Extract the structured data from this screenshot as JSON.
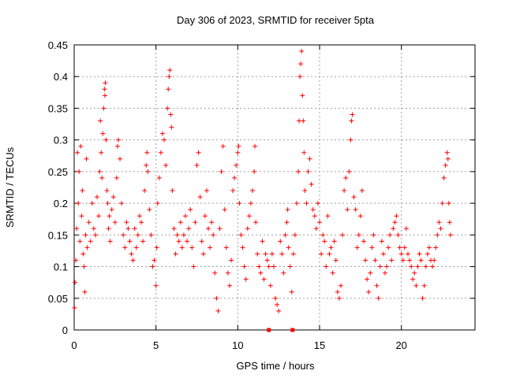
{
  "chart_data": {
    "type": "scatter",
    "title": "Day 306 of 2023, SRMTID for receiver 5pta",
    "xlabel": "GPS time / hours",
    "ylabel": "SRMTID / TECUs",
    "xlim": [
      0,
      24.5
    ],
    "ylim": [
      0,
      0.45
    ],
    "xticks": [
      0,
      5,
      10,
      15,
      20
    ],
    "xtick_labels": [
      "0",
      "5",
      "10",
      "15",
      "20"
    ],
    "yticks": [
      0,
      0.05,
      0.1,
      0.15,
      0.2,
      0.25,
      0.3,
      0.35,
      0.4,
      0.45
    ],
    "ytick_labels": [
      "0",
      "0.05",
      "0.1",
      "0.15",
      "0.2",
      "0.25",
      "0.3",
      "0.35",
      "0.4",
      "0.45"
    ],
    "grid": true,
    "marker": "+",
    "color": "#ff0000",
    "series": [
      {
        "name": "SRMTID",
        "points": [
          [
            0.02,
            0.035
          ],
          [
            0.05,
            0.075
          ],
          [
            0.1,
            0.11
          ],
          [
            0.15,
            0.16
          ],
          [
            0.2,
            0.28
          ],
          [
            0.25,
            0.2
          ],
          [
            0.3,
            0.25
          ],
          [
            0.35,
            0.14
          ],
          [
            0.4,
            0.29
          ],
          [
            0.45,
            0.18
          ],
          [
            0.5,
            0.22
          ],
          [
            0.55,
            0.12
          ],
          [
            0.6,
            0.1
          ],
          [
            0.65,
            0.06
          ],
          [
            0.7,
            0.15
          ],
          [
            0.75,
            0.27
          ],
          [
            0.8,
            0.13
          ],
          [
            0.9,
            0.17
          ],
          [
            1.0,
            0.14
          ],
          [
            1.1,
            0.2
          ],
          [
            1.2,
            0.16
          ],
          [
            1.3,
            0.15
          ],
          [
            1.4,
            0.21
          ],
          [
            1.5,
            0.18
          ],
          [
            1.55,
            0.25
          ],
          [
            1.6,
            0.33
          ],
          [
            1.65,
            0.28
          ],
          [
            1.7,
            0.24
          ],
          [
            1.75,
            0.31
          ],
          [
            1.8,
            0.35
          ],
          [
            1.85,
            0.38
          ],
          [
            1.88,
            0.37
          ],
          [
            1.9,
            0.39
          ],
          [
            1.95,
            0.3
          ],
          [
            2.0,
            0.22
          ],
          [
            2.05,
            0.2
          ],
          [
            2.1,
            0.16
          ],
          [
            2.15,
            0.18
          ],
          [
            2.2,
            0.14
          ],
          [
            2.3,
            0.19
          ],
          [
            2.4,
            0.21
          ],
          [
            2.5,
            0.17
          ],
          [
            2.6,
            0.24
          ],
          [
            2.65,
            0.29
          ],
          [
            2.7,
            0.3
          ],
          [
            2.8,
            0.27
          ],
          [
            2.9,
            0.2
          ],
          [
            3.0,
            0.15
          ],
          [
            3.1,
            0.13
          ],
          [
            3.2,
            0.17
          ],
          [
            3.3,
            0.16
          ],
          [
            3.4,
            0.14
          ],
          [
            3.5,
            0.12
          ],
          [
            3.6,
            0.11
          ],
          [
            3.7,
            0.16
          ],
          [
            3.8,
            0.13
          ],
          [
            3.9,
            0.15
          ],
          [
            4.0,
            0.18
          ],
          [
            4.1,
            0.17
          ],
          [
            4.2,
            0.14
          ],
          [
            4.3,
            0.22
          ],
          [
            4.4,
            0.26
          ],
          [
            4.45,
            0.28
          ],
          [
            4.5,
            0.25
          ],
          [
            4.6,
            0.19
          ],
          [
            4.7,
            0.15
          ],
          [
            4.8,
            0.1
          ],
          [
            4.9,
            0.11
          ],
          [
            5.0,
            0.07
          ],
          [
            5.05,
            0.13
          ],
          [
            5.1,
            0.2
          ],
          [
            5.2,
            0.24
          ],
          [
            5.3,
            0.28
          ],
          [
            5.4,
            0.31
          ],
          [
            5.5,
            0.3
          ],
          [
            5.6,
            0.26
          ],
          [
            5.7,
            0.35
          ],
          [
            5.75,
            0.38
          ],
          [
            5.8,
            0.4
          ],
          [
            5.85,
            0.41
          ],
          [
            5.9,
            0.34
          ],
          [
            5.95,
            0.32
          ],
          [
            6.0,
            0.22
          ],
          [
            6.1,
            0.16
          ],
          [
            6.2,
            0.12
          ],
          [
            6.3,
            0.15
          ],
          [
            6.4,
            0.14
          ],
          [
            6.5,
            0.17
          ],
          [
            6.6,
            0.13
          ],
          [
            6.7,
            0.15
          ],
          [
            6.8,
            0.18
          ],
          [
            6.9,
            0.14
          ],
          [
            7.0,
            0.16
          ],
          [
            7.1,
            0.19
          ],
          [
            7.2,
            0.13
          ],
          [
            7.3,
            0.1
          ],
          [
            7.4,
            0.17
          ],
          [
            7.5,
            0.26
          ],
          [
            7.6,
            0.28
          ],
          [
            7.7,
            0.21
          ],
          [
            7.8,
            0.14
          ],
          [
            7.9,
            0.12
          ],
          [
            8.0,
            0.18
          ],
          [
            8.1,
            0.22
          ],
          [
            8.2,
            0.16
          ],
          [
            8.3,
            0.13
          ],
          [
            8.4,
            0.17
          ],
          [
            8.5,
            0.15
          ],
          [
            8.6,
            0.09
          ],
          [
            8.7,
            0.05
          ],
          [
            8.8,
            0.03
          ],
          [
            8.9,
            0.16
          ],
          [
            9.0,
            0.25
          ],
          [
            9.1,
            0.29
          ],
          [
            9.2,
            0.19
          ],
          [
            9.3,
            0.13
          ],
          [
            9.4,
            0.09
          ],
          [
            9.5,
            0.07
          ],
          [
            9.6,
            0.11
          ],
          [
            9.7,
            0.22
          ],
          [
            9.8,
            0.24
          ],
          [
            9.9,
            0.26
          ],
          [
            10.0,
            0.28
          ],
          [
            10.05,
            0.29
          ],
          [
            10.1,
            0.2
          ],
          [
            10.2,
            0.15
          ],
          [
            10.3,
            0.13
          ],
          [
            10.4,
            0.1
          ],
          [
            10.5,
            0.08
          ],
          [
            10.6,
            0.16
          ],
          [
            10.7,
            0.18
          ],
          [
            10.8,
            0.2
          ],
          [
            10.9,
            0.22
          ],
          [
            11.0,
            0.25
          ],
          [
            11.05,
            0.29
          ],
          [
            11.1,
            0.17
          ],
          [
            11.2,
            0.12
          ],
          [
            11.3,
            0.1
          ],
          [
            11.4,
            0.09
          ],
          [
            11.5,
            0.14
          ],
          [
            11.6,
            0.08
          ],
          [
            11.7,
            0.12
          ],
          [
            11.8,
            0.11
          ],
          [
            11.9,
            0.1
          ],
          [
            12.0,
            0.07
          ],
          [
            12.1,
            0.12
          ],
          [
            12.2,
            0.1
          ],
          [
            12.3,
            0.05
          ],
          [
            12.4,
            0.04
          ],
          [
            12.5,
            0.03
          ],
          [
            12.6,
            0.14
          ],
          [
            12.7,
            0.12
          ],
          [
            12.8,
            0.09
          ],
          [
            12.9,
            0.15
          ],
          [
            13.0,
            0.17
          ],
          [
            13.05,
            0.19
          ],
          [
            13.1,
            0.13
          ],
          [
            13.2,
            0.1
          ],
          [
            13.3,
            0.06
          ],
          [
            13.4,
            0.12
          ],
          [
            13.5,
            0.15
          ],
          [
            13.6,
            0.2
          ],
          [
            13.7,
            0.25
          ],
          [
            13.75,
            0.33
          ],
          [
            13.8,
            0.4
          ],
          [
            13.85,
            0.42
          ],
          [
            13.9,
            0.44
          ],
          [
            13.95,
            0.37
          ],
          [
            14.0,
            0.33
          ],
          [
            14.05,
            0.28
          ],
          [
            14.1,
            0.22
          ],
          [
            14.2,
            0.2
          ],
          [
            14.3,
            0.25
          ],
          [
            14.4,
            0.27
          ],
          [
            14.5,
            0.23
          ],
          [
            14.6,
            0.19
          ],
          [
            14.7,
            0.18
          ],
          [
            14.8,
            0.16
          ],
          [
            14.9,
            0.2
          ],
          [
            15.0,
            0.17
          ],
          [
            15.1,
            0.12
          ],
          [
            15.2,
            0.15
          ],
          [
            15.3,
            0.14
          ],
          [
            15.4,
            0.1
          ],
          [
            15.5,
            0.18
          ],
          [
            15.6,
            0.12
          ],
          [
            15.7,
            0.13
          ],
          [
            15.8,
            0.09
          ],
          [
            15.9,
            0.14
          ],
          [
            16.0,
            0.11
          ],
          [
            16.1,
            0.06
          ],
          [
            16.2,
            0.05
          ],
          [
            16.3,
            0.07
          ],
          [
            16.4,
            0.15
          ],
          [
            16.5,
            0.22
          ],
          [
            16.6,
            0.24
          ],
          [
            16.7,
            0.19
          ],
          [
            16.8,
            0.25
          ],
          [
            16.9,
            0.3
          ],
          [
            16.95,
            0.33
          ],
          [
            17.0,
            0.34
          ],
          [
            17.1,
            0.21
          ],
          [
            17.2,
            0.19
          ],
          [
            17.3,
            0.13
          ],
          [
            17.4,
            0.15
          ],
          [
            17.5,
            0.18
          ],
          [
            17.6,
            0.22
          ],
          [
            17.7,
            0.14
          ],
          [
            17.8,
            0.11
          ],
          [
            17.9,
            0.08
          ],
          [
            18.0,
            0.06
          ],
          [
            18.1,
            0.09
          ],
          [
            18.2,
            0.13
          ],
          [
            18.3,
            0.15
          ],
          [
            18.4,
            0.11
          ],
          [
            18.5,
            0.07
          ],
          [
            18.6,
            0.05
          ],
          [
            18.7,
            0.1
          ],
          [
            18.8,
            0.14
          ],
          [
            18.9,
            0.12
          ],
          [
            19.0,
            0.09
          ],
          [
            19.1,
            0.1
          ],
          [
            19.2,
            0.13
          ],
          [
            19.3,
            0.15
          ],
          [
            19.4,
            0.11
          ],
          [
            19.5,
            0.16
          ],
          [
            19.6,
            0.17
          ],
          [
            19.7,
            0.18
          ],
          [
            19.8,
            0.15
          ],
          [
            19.9,
            0.13
          ],
          [
            20.0,
            0.12
          ],
          [
            20.1,
            0.11
          ],
          [
            20.2,
            0.13
          ],
          [
            20.3,
            0.16
          ],
          [
            20.4,
            0.12
          ],
          [
            20.5,
            0.11
          ],
          [
            20.6,
            0.1
          ],
          [
            20.7,
            0.08
          ],
          [
            20.8,
            0.09
          ],
          [
            20.9,
            0.07
          ],
          [
            21.0,
            0.1
          ],
          [
            21.1,
            0.12
          ],
          [
            21.2,
            0.11
          ],
          [
            21.3,
            0.05
          ],
          [
            21.4,
            0.07
          ],
          [
            21.5,
            0.1
          ],
          [
            21.6,
            0.12
          ],
          [
            21.7,
            0.13
          ],
          [
            21.8,
            0.11
          ],
          [
            21.9,
            0.1
          ],
          [
            22.0,
            0.11
          ],
          [
            22.1,
            0.13
          ],
          [
            22.2,
            0.15
          ],
          [
            22.3,
            0.17
          ],
          [
            22.4,
            0.16
          ],
          [
            22.5,
            0.2
          ],
          [
            22.6,
            0.24
          ],
          [
            22.7,
            0.26
          ],
          [
            22.8,
            0.28
          ],
          [
            22.85,
            0.27
          ],
          [
            22.9,
            0.2
          ],
          [
            22.95,
            0.17
          ],
          [
            23.0,
            0.15
          ]
        ]
      }
    ],
    "zero_markers_x": [
      11.9,
      13.35
    ]
  }
}
